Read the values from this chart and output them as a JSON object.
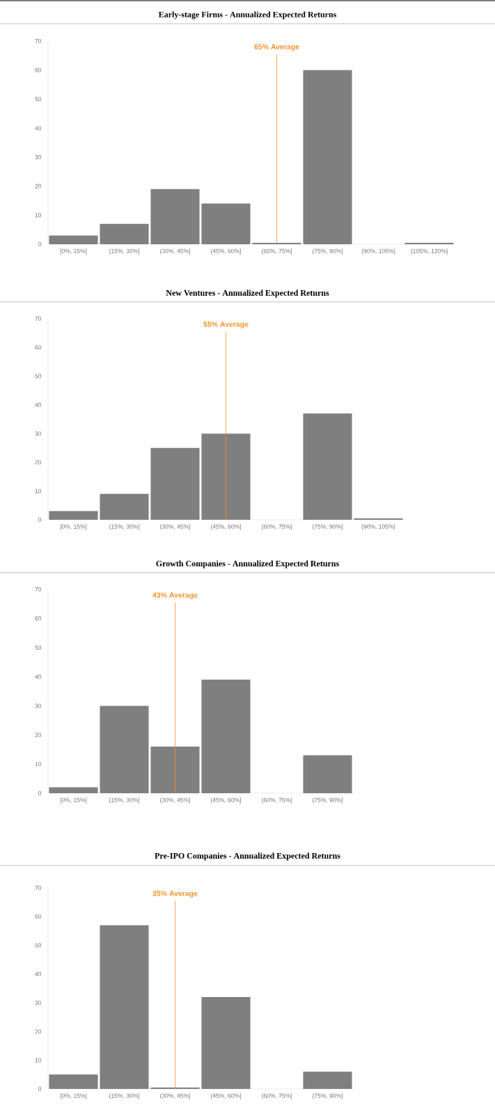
{
  "chart_data": [
    {
      "type": "bar",
      "title": "Early-stage Firms - Annualized Expected Returns",
      "categories": [
        "[0%, 15%]",
        "(15%, 30%]",
        "(30%, 45%]",
        "(45%, 60%]",
        "(60%, 75%]",
        "(75%, 90%]",
        "(90%, 105%]",
        "(105%, 120%]"
      ],
      "values": [
        3,
        7,
        19,
        14,
        0.5,
        60,
        0,
        0.5
      ],
      "color": "#7f7f7f",
      "ylim": [
        0,
        70
      ],
      "yticks": [
        0,
        10,
        20,
        30,
        40,
        50,
        60,
        70
      ],
      "ref_lines": [
        {
          "axis": "x",
          "value": "(60%, 75%]",
          "label": "65% Average",
          "color": "#f39128"
        }
      ]
    },
    {
      "type": "bar",
      "title": "New Ventures - Annualized Expected Returns",
      "categories": [
        "[0%, 15%]",
        "(15%, 30%]",
        "(30%, 45%]",
        "(45%, 60%]",
        "(60%, 75%]",
        "(75%, 90%]",
        "(90%, 105%]"
      ],
      "values": [
        3,
        9,
        25,
        30,
        0,
        37,
        0.5
      ],
      "color": "#7f7f7f",
      "ylim": [
        0,
        70
      ],
      "yticks": [
        0,
        10,
        20,
        30,
        40,
        50,
        60,
        70
      ],
      "ref_lines": [
        {
          "axis": "x",
          "value": "(45%, 60%]",
          "label": "55% Average",
          "color": "#f39128"
        }
      ]
    },
    {
      "type": "bar",
      "title": "Growth Companies - Annualized Expected Returns",
      "categories": [
        "[0%, 15%]",
        "(15%, 30%]",
        "(30%, 45%]",
        "(45%, 60%]",
        "(60%, 75%]",
        "(75%, 90%]"
      ],
      "values": [
        2,
        30,
        16,
        39,
        0,
        13
      ],
      "color": "#7f7f7f",
      "ylim": [
        0,
        70
      ],
      "yticks": [
        0,
        10,
        20,
        30,
        40,
        50,
        60,
        70
      ],
      "ref_lines": [
        {
          "axis": "x",
          "value": "(30%, 45%]",
          "label": "43% Average",
          "color": "#f39128"
        }
      ]
    },
    {
      "type": "bar",
      "title": "Pre-IPO Companies - Annualized Expected Returns",
      "categories": [
        "[0%, 15%]",
        "(15%, 30%]",
        "(30%, 45%]",
        "(45%, 60%]",
        "(60%, 75%]",
        "(75%, 90%]"
      ],
      "values": [
        5,
        57,
        0.5,
        32,
        0,
        6
      ],
      "color": "#7f7f7f",
      "ylim": [
        0,
        70
      ],
      "yticks": [
        0,
        10,
        20,
        30,
        40,
        50,
        60,
        70
      ],
      "ref_lines": [
        {
          "axis": "x",
          "value": "(30%, 45%]",
          "label": "35% Average",
          "color": "#f39128"
        }
      ]
    }
  ]
}
